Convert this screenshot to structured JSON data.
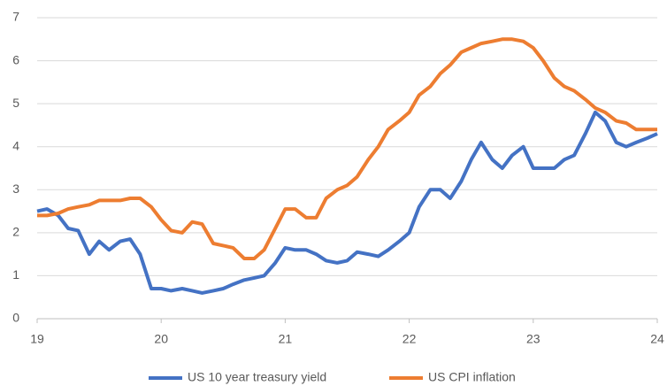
{
  "chart_data": {
    "type": "line",
    "x": [
      19,
      19.08,
      19.17,
      19.25,
      19.33,
      19.42,
      19.5,
      19.58,
      19.67,
      19.75,
      19.83,
      19.92,
      20,
      20.08,
      20.17,
      20.25,
      20.33,
      20.42,
      20.5,
      20.58,
      20.67,
      20.75,
      20.83,
      20.92,
      21,
      21.08,
      21.17,
      21.25,
      21.33,
      21.42,
      21.5,
      21.58,
      21.67,
      21.75,
      21.83,
      21.92,
      22,
      22.08,
      22.17,
      22.25,
      22.33,
      22.42,
      22.5,
      22.58,
      22.67,
      22.75,
      22.83,
      22.92,
      23,
      23.08,
      23.17,
      23.25,
      23.33,
      23.42,
      23.5,
      23.58,
      23.67,
      23.75,
      23.83,
      23.92,
      24
    ],
    "series": [
      {
        "name": "US 10 year treasury yield",
        "color": "#4472c4",
        "values": [
          2.5,
          2.55,
          2.4,
          2.1,
          2.05,
          1.5,
          1.8,
          1.6,
          1.8,
          1.85,
          1.5,
          0.7,
          0.7,
          0.65,
          0.7,
          0.65,
          0.6,
          0.65,
          0.7,
          0.8,
          0.9,
          0.95,
          1.0,
          1.3,
          1.65,
          1.6,
          1.6,
          1.5,
          1.35,
          1.3,
          1.35,
          1.55,
          1.5,
          1.45,
          1.6,
          1.8,
          2.0,
          2.6,
          3.0,
          3.0,
          2.8,
          3.2,
          3.7,
          4.1,
          3.7,
          3.5,
          3.8,
          4.0,
          3.5,
          3.5,
          3.5,
          3.7,
          3.8,
          4.3,
          4.8,
          4.6,
          4.1,
          4.0,
          4.1,
          4.2,
          4.3
        ]
      },
      {
        "name": "US CPI inflation",
        "color": "#ed7d31",
        "values": [
          2.4,
          2.4,
          2.45,
          2.55,
          2.6,
          2.65,
          2.75,
          2.75,
          2.75,
          2.8,
          2.8,
          2.6,
          2.3,
          2.05,
          2.0,
          2.25,
          2.2,
          1.75,
          1.7,
          1.65,
          1.4,
          1.4,
          1.6,
          2.1,
          2.55,
          2.55,
          2.35,
          2.35,
          2.8,
          3.0,
          3.1,
          3.3,
          3.7,
          4.0,
          4.4,
          4.6,
          4.8,
          5.2,
          5.4,
          5.7,
          5.9,
          6.2,
          6.3,
          6.4,
          6.45,
          6.5,
          6.5,
          6.45,
          6.3,
          6.0,
          5.6,
          5.4,
          5.3,
          5.1,
          4.9,
          4.8,
          4.6,
          4.55,
          4.4,
          4.4,
          4.4
        ]
      }
    ],
    "xlim": [
      19,
      24
    ],
    "xticks": [
      19,
      20,
      21,
      22,
      23,
      24
    ],
    "ylim": [
      0,
      7
    ],
    "yticks": [
      0,
      1,
      2,
      3,
      4,
      5,
      6,
      7
    ],
    "grid": true,
    "legend": "bottom"
  }
}
